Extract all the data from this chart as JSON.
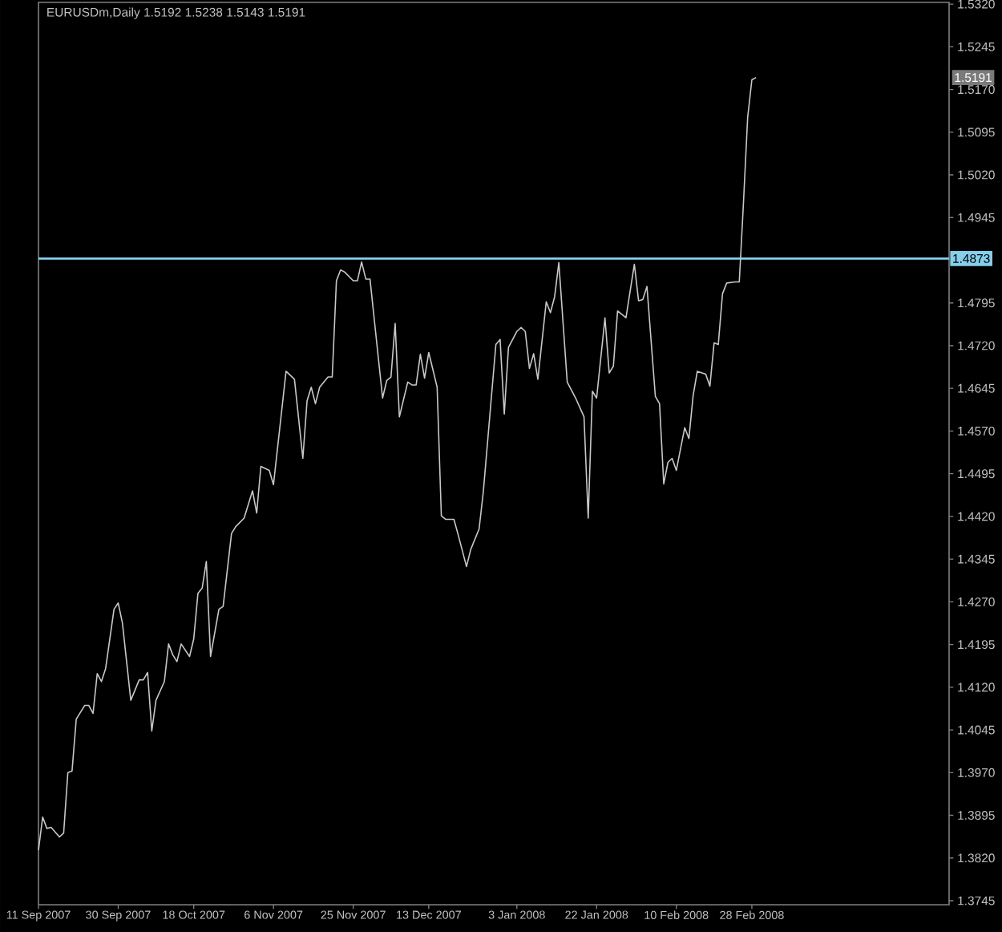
{
  "chart_data": {
    "type": "line",
    "title": "EURUSDm,Daily 1.5192 1.5238 1.5143 1.5191",
    "x": [
      "2007-09-11",
      "2007-09-12",
      "2007-09-13",
      "2007-09-14",
      "2007-09-16",
      "2007-09-17",
      "2007-09-18",
      "2007-09-19",
      "2007-09-20",
      "2007-09-22",
      "2007-09-23",
      "2007-09-24",
      "2007-09-25",
      "2007-09-26",
      "2007-09-27",
      "2007-09-29",
      "2007-09-30",
      "2007-10-01",
      "2007-10-03",
      "2007-10-05",
      "2007-10-06",
      "2007-10-07",
      "2007-10-08",
      "2007-10-09",
      "2007-10-11",
      "2007-10-12",
      "2007-10-13",
      "2007-10-14",
      "2007-10-15",
      "2007-10-17",
      "2007-10-18",
      "2007-10-19",
      "2007-10-20",
      "2007-10-21",
      "2007-10-22",
      "2007-10-24",
      "2007-10-25",
      "2007-10-27",
      "2007-10-28",
      "2007-10-30",
      "2007-11-01",
      "2007-11-02",
      "2007-11-03",
      "2007-11-05",
      "2007-11-06",
      "2007-11-09",
      "2007-11-11",
      "2007-11-13",
      "2007-11-14",
      "2007-11-15",
      "2007-11-16",
      "2007-11-17",
      "2007-11-19",
      "2007-11-20",
      "2007-11-21",
      "2007-11-22",
      "2007-11-23",
      "2007-11-25",
      "2007-11-26",
      "2007-11-27",
      "2007-11-28",
      "2007-11-29",
      "2007-12-02",
      "2007-12-03",
      "2007-12-04",
      "2007-12-05",
      "2007-12-06",
      "2007-12-08",
      "2007-12-09",
      "2007-12-10",
      "2007-12-11",
      "2007-12-12",
      "2007-12-13",
      "2007-12-15",
      "2007-12-16",
      "2007-12-17",
      "2007-12-19",
      "2007-12-20",
      "2007-12-22",
      "2007-12-23",
      "2007-12-25",
      "2007-12-26",
      "2007-12-29",
      "2007-12-30",
      "2007-12-31",
      "2008-01-01",
      "2008-01-03",
      "2008-01-04",
      "2008-01-05",
      "2008-01-06",
      "2008-01-07",
      "2008-01-08",
      "2008-01-10",
      "2008-01-11",
      "2008-01-12",
      "2008-01-13",
      "2008-01-15",
      "2008-01-17",
      "2008-01-19",
      "2008-01-20",
      "2008-01-21",
      "2008-01-22",
      "2008-01-24",
      "2008-01-25",
      "2008-01-26",
      "2008-01-27",
      "2008-01-29",
      "2008-01-31",
      "2008-02-01",
      "2008-02-02",
      "2008-02-03",
      "2008-02-05",
      "2008-02-06",
      "2008-02-07",
      "2008-02-08",
      "2008-02-09",
      "2008-02-10",
      "2008-02-12",
      "2008-02-13",
      "2008-02-14",
      "2008-02-15",
      "2008-02-17",
      "2008-02-18",
      "2008-02-19",
      "2008-02-20",
      "2008-02-21",
      "2008-02-22",
      "2008-02-24",
      "2008-02-25",
      "2008-02-26",
      "2008-02-27",
      "2008-02-28",
      "2008-02-29"
    ],
    "values": [
      1.3834,
      1.3892,
      1.3872,
      1.3874,
      1.3857,
      1.3864,
      1.397,
      1.3973,
      1.4064,
      1.4088,
      1.4088,
      1.4074,
      1.4144,
      1.413,
      1.4153,
      1.4257,
      1.4268,
      1.4233,
      1.4097,
      1.4133,
      1.4133,
      1.4146,
      1.4043,
      1.4097,
      1.413,
      1.4196,
      1.4177,
      1.4165,
      1.4196,
      1.4174,
      1.4205,
      1.4285,
      1.4294,
      1.4341,
      1.4174,
      1.4257,
      1.4262,
      1.439,
      1.4402,
      1.4417,
      1.4465,
      1.4426,
      1.4508,
      1.4501,
      1.4476,
      1.4675,
      1.4661,
      1.4522,
      1.4623,
      1.4647,
      1.4618,
      1.4647,
      1.4665,
      1.4665,
      1.4834,
      1.4853,
      1.4849,
      1.4834,
      1.4834,
      1.4867,
      1.4837,
      1.4837,
      1.4628,
      1.4659,
      1.4665,
      1.4759,
      1.4595,
      1.4656,
      1.4651,
      1.4651,
      1.4705,
      1.4663,
      1.4708,
      1.4647,
      1.4421,
      1.4415,
      1.4415,
      1.4388,
      1.4332,
      1.4362,
      1.4398,
      1.4463,
      1.4722,
      1.4731,
      1.46,
      1.4717,
      1.4745,
      1.4752,
      1.4745,
      1.468,
      1.4706,
      1.4661,
      1.4797,
      1.4778,
      1.4806,
      1.4866,
      1.4656,
      1.4628,
      1.4595,
      1.4417,
      1.464,
      1.4628,
      1.4769,
      1.4672,
      1.4684,
      1.4781,
      1.4769,
      1.4863,
      1.4799,
      1.4801,
      1.4824,
      1.4631,
      1.4618,
      1.4477,
      1.4515,
      1.4522,
      1.4501,
      1.4576,
      1.4557,
      1.4632,
      1.4675,
      1.467,
      1.4649,
      1.4725,
      1.4722,
      1.4811,
      1.483,
      1.4832,
      1.4832,
      1.4971,
      1.5121,
      1.5187,
      1.5191
    ],
    "color": "#c8c8c8",
    "xlim": [
      "2007-09-11",
      "2008-04-15"
    ],
    "xticks": [
      {
        "value": "2007-09-11",
        "label": "11 Sep 2007"
      },
      {
        "value": "2007-09-30",
        "label": "30 Sep 2007"
      },
      {
        "value": "2007-10-18",
        "label": "18 Oct 2007"
      },
      {
        "value": "2007-11-06",
        "label": "6 Nov 2007"
      },
      {
        "value": "2007-11-25",
        "label": "25 Nov 2007"
      },
      {
        "value": "2007-12-13",
        "label": "13 Dec 2007"
      },
      {
        "value": "2008-01-03",
        "label": "3 Jan 2008"
      },
      {
        "value": "2008-01-22",
        "label": "22 Jan 2008"
      },
      {
        "value": "2008-02-10",
        "label": "10 Feb 2008"
      },
      {
        "value": "2008-02-28",
        "label": "28 Feb 2008"
      }
    ],
    "ylim": [
      1.3738,
      1.5323
    ],
    "yticks": [
      {
        "value": 1.532,
        "label": "1.5320"
      },
      1.5245,
      {
        "value": 1.517,
        "label": "1.5170"
      },
      1.5095,
      {
        "value": 1.502,
        "label": "1.5020"
      },
      1.4945,
      1.4795,
      {
        "value": 1.472,
        "label": "1.4720"
      },
      1.4645,
      {
        "value": 1.457,
        "label": "1.4570"
      },
      1.4495,
      {
        "value": 1.442,
        "label": "1.4420"
      },
      1.4345,
      {
        "value": 1.427,
        "label": "1.4270"
      },
      1.4195,
      {
        "value": 1.412,
        "label": "1.4120"
      },
      1.4045,
      {
        "value": 1.397,
        "label": "1.3970"
      },
      1.3895,
      {
        "value": 1.382,
        "label": "1.3820"
      },
      1.3745
    ],
    "ref_lines": [
      {
        "axis": "y",
        "value": 1.4873,
        "label": "1.4873",
        "color": "#87ceeb"
      }
    ],
    "annotations": [
      {
        "text": "1.5191",
        "y": 1.5191
      }
    ]
  }
}
